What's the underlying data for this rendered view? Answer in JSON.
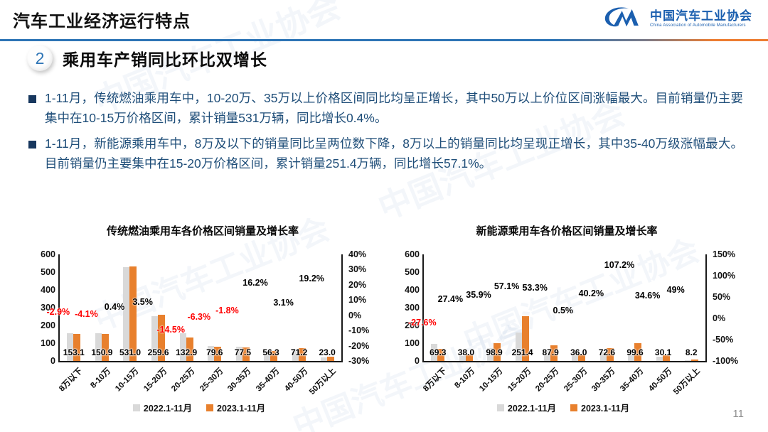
{
  "header": {
    "title": "汽车工业经济运行特点",
    "logo": {
      "cn": "中国汽车工业协会",
      "en": "China Association of Automobile Manufacturers"
    }
  },
  "section": {
    "number": "2",
    "heading": "乘用车产销同比环比双增长"
  },
  "bullets": [
    "1-11月，传统燃油乘用车中，10-20万、35万以上价格区间同比均呈正增长，其中50万以上价位区间涨幅最大。目前销量仍主要集中在10-15万价格区间，累计销量531万辆，同比增长0.4%。",
    "1-11月，新能源乘用车中，8万及以下的销量同比呈两位数下降，8万以上的销量同比均呈现正增长，其中35-40万级涨幅最大。目前销量仍主要集中在15-20万价格区间，累计销量251.4万辆，同比增长57.1%。"
  ],
  "watermark": "中国汽车工业协会",
  "page_number": "11",
  "colors": {
    "accent_blue": "#2e75b6",
    "accent_orange": "#ed7d31",
    "bar_2022": "#d9d9d9",
    "bar_2023": "#e8802d",
    "negative_label": "#ff0000",
    "positive_label": "#000000",
    "body_text": "#1f4e79"
  },
  "legend": [
    {
      "label": "2022.1-11月",
      "color": "#d9d9d9"
    },
    {
      "label": "2023.1-11月",
      "color": "#e8802d"
    }
  ],
  "chart_data": [
    {
      "type": "bar",
      "title": "传统燃油乘用车各价格区间销量及增长率",
      "categories": [
        "8万以下",
        "8-10万",
        "10-15万",
        "15-20万",
        "20-25万",
        "25-30万",
        "30-35万",
        "35-40万",
        "40-50万",
        "50万以上"
      ],
      "series": [
        {
          "name": "2022.1-11月",
          "values": [
            157.7,
            157.4,
            528.9,
            250.8,
            155.4,
            84.9,
            78.9,
            48.5,
            69.1,
            19.3
          ],
          "note": "estimated from bar heights / growth rates (unlabeled)"
        },
        {
          "name": "2023.1-11月",
          "values": [
            153.1,
            150.9,
            531.0,
            259.6,
            132.9,
            79.6,
            77.5,
            56.3,
            71.2,
            23.0
          ]
        }
      ],
      "value_labels": [
        "153.1",
        "150.9",
        "531.0",
        "259.6",
        "132.9",
        "79.6",
        "77.5",
        "56.3",
        "71.2",
        "23.0"
      ],
      "growth_values": [
        -2.9,
        -4.1,
        0.4,
        3.5,
        -14.5,
        -6.3,
        -1.8,
        16.2,
        3.1,
        19.2
      ],
      "growth_labels": [
        "-2.9%",
        "-4.1%",
        "0.4%",
        "3.5%",
        "-14.5%",
        "-6.3%",
        "-1.8%",
        "16.2%",
        "3.1%",
        "19.2%"
      ],
      "left_axis": {
        "min": 0,
        "max": 600,
        "step": 100
      },
      "right_axis": {
        "min": -30,
        "max": 40,
        "step": 10,
        "suffix": "%"
      },
      "grid": false,
      "legend_position": "bottom"
    },
    {
      "type": "bar",
      "title": "新能源乘用车各价格区间销量及增长率",
      "categories": [
        "8万以下",
        "8-10万",
        "10-15万",
        "15-20万",
        "20-25万",
        "25-30万",
        "30-35万",
        "35-40万",
        "40-50万",
        "50万以上"
      ],
      "series": [
        {
          "name": "2022.1-11月",
          "values": [
            95.7,
            29.8,
            72.8,
            160.0,
            57.3,
            35.8,
            51.8,
            48.1,
            22.4,
            5.5
          ],
          "note": "estimated from bar heights / growth rates (unlabeled)"
        },
        {
          "name": "2023.1-11月",
          "values": [
            69.3,
            38.0,
            98.9,
            251.4,
            87.9,
            36.0,
            72.6,
            99.6,
            30.1,
            8.2
          ]
        }
      ],
      "value_labels": [
        "69.3",
        "38.0",
        "98.9",
        "251.4",
        "87.9",
        "36.0",
        "72.6",
        "99.6",
        "30.1",
        "8.2"
      ],
      "growth_values": [
        -27.6,
        27.4,
        35.9,
        57.1,
        53.3,
        0.5,
        40.2,
        107.2,
        34.6,
        49
      ],
      "growth_labels": [
        "-27.6%",
        "27.4%",
        "35.9%",
        "57.1%",
        "53.3%",
        "0.5%",
        "40.2%",
        "107.2%",
        "34.6%",
        "49%"
      ],
      "left_axis": {
        "min": 0,
        "max": 600,
        "step": 100
      },
      "right_axis": {
        "min": -100,
        "max": 150,
        "step": 50,
        "suffix": "%"
      },
      "grid": false,
      "legend_position": "bottom"
    }
  ]
}
